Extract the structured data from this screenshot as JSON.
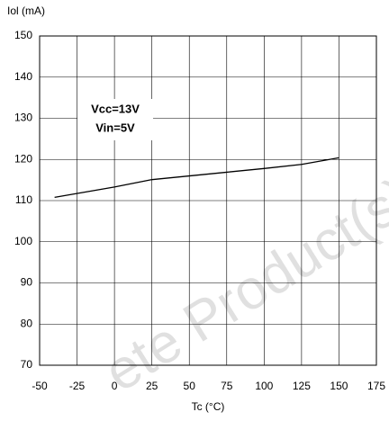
{
  "chart_data": {
    "type": "line",
    "y_label": "Iol (mA)",
    "x_label": "Tc (°C)",
    "annotations": [
      "Vcc=13V",
      "Vin=5V"
    ],
    "watermark": "ete Product(s)",
    "x": [
      -40,
      0,
      25,
      50,
      75,
      100,
      125,
      150
    ],
    "series": [
      {
        "name": "Iol",
        "color": "#000000",
        "values": [
          110.8,
          113.3,
          115.1,
          116,
          116.9,
          117.8,
          118.8,
          120.4
        ]
      }
    ],
    "xlim": [
      -50,
      175
    ],
    "xticks": [
      -50,
      -25,
      0,
      25,
      50,
      75,
      100,
      125,
      150,
      175
    ],
    "ylim": [
      70,
      150
    ],
    "yticks": [
      70,
      80,
      90,
      100,
      110,
      120,
      130,
      140,
      150
    ],
    "grid": true
  }
}
